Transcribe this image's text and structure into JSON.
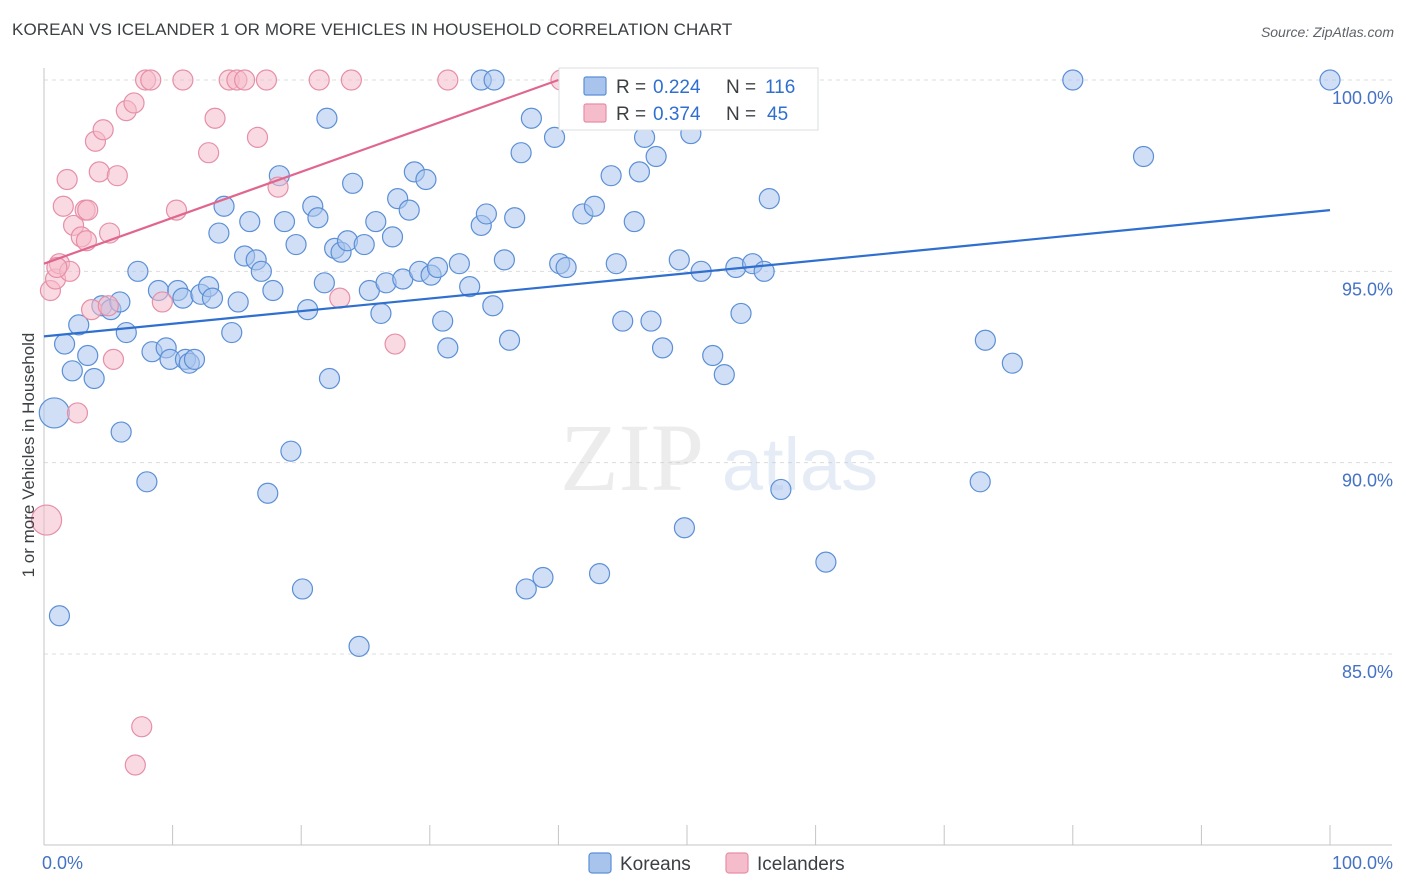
{
  "title": "KOREAN VS ICELANDER 1 OR MORE VEHICLES IN HOUSEHOLD CORRELATION CHART",
  "source": "Source: ZipAtlas.com",
  "watermark": {
    "zip": "ZIP",
    "atlas": "atlas"
  },
  "colors": {
    "koreans_fill": "#a9c4ec",
    "koreans_stroke": "#5b8fd6",
    "koreans_line": "#2f6fcf",
    "icelanders_fill": "#f5bccb",
    "icelanders_stroke": "#e58fa8",
    "icelanders_line": "#e0668e",
    "tick_text": "#4472c4",
    "value_text": "#2f6fcf"
  },
  "legend_box": {
    "rows": [
      {
        "r_label": "R = ",
        "r_value": "0.224",
        "n_label": "N = ",
        "n_value": "116",
        "series": "koreans"
      },
      {
        "r_label": "R = ",
        "r_value": "0.374",
        "n_label": "N = ",
        "n_value": "45",
        "series": "icelanders"
      }
    ]
  },
  "chart_data": {
    "type": "scatter",
    "title": "KOREAN VS ICELANDER 1 OR MORE VEHICLES IN HOUSEHOLD CORRELATION CHART",
    "xlabel": "",
    "ylabel": "1 or more Vehicles in Household",
    "xlim": [
      0,
      100
    ],
    "ylim": [
      80.5,
      100.8
    ],
    "x_ticks": [
      0,
      10,
      20,
      30,
      40,
      50,
      60,
      70,
      80,
      90,
      100
    ],
    "x_tick_labels": [
      {
        "value": 0,
        "label": "0.0%"
      },
      {
        "value": 100,
        "label": "100.0%"
      }
    ],
    "y_tick_labels": [
      {
        "value": 100,
        "label": "100.0%"
      },
      {
        "value": 95,
        "label": "95.0%"
      },
      {
        "value": 90,
        "label": "90.0%"
      },
      {
        "value": 85,
        "label": "85.0%"
      }
    ],
    "grid": true,
    "legend_position": "bottom",
    "series": [
      {
        "name": "Koreans",
        "key": "koreans",
        "trend": {
          "x": [
            0,
            100
          ],
          "y": [
            93.3,
            96.6
          ]
        },
        "points": [
          [
            0.8,
            91.3,
            3
          ],
          [
            1.2,
            86.0,
            2
          ],
          [
            1.6,
            93.1,
            2
          ],
          [
            2.2,
            92.4,
            2
          ],
          [
            2.7,
            93.6,
            2
          ],
          [
            3.4,
            92.8,
            2
          ],
          [
            3.9,
            92.2,
            2
          ],
          [
            4.5,
            94.1,
            2
          ],
          [
            5.2,
            94.0,
            2
          ],
          [
            5.9,
            94.2,
            2
          ],
          [
            6.4,
            93.4,
            2
          ],
          [
            7.3,
            95.0,
            2
          ],
          [
            8.0,
            89.5,
            2
          ],
          [
            8.4,
            92.9,
            2
          ],
          [
            8.9,
            94.5,
            2
          ],
          [
            9.5,
            93.0,
            2
          ],
          [
            9.8,
            92.7,
            2
          ],
          [
            10.4,
            94.5,
            2
          ],
          [
            10.8,
            94.3,
            2
          ],
          [
            11.0,
            92.7,
            2
          ],
          [
            11.3,
            92.6,
            2
          ],
          [
            11.7,
            92.7,
            2
          ],
          [
            12.2,
            94.4,
            2
          ],
          [
            12.8,
            94.6,
            2
          ],
          [
            13.1,
            94.3,
            2
          ],
          [
            13.6,
            96.0,
            2
          ],
          [
            14.0,
            96.7,
            2
          ],
          [
            14.6,
            93.4,
            2
          ],
          [
            15.1,
            94.2,
            2
          ],
          [
            15.6,
            95.4,
            2
          ],
          [
            16.0,
            96.3,
            2
          ],
          [
            16.5,
            95.3,
            2
          ],
          [
            16.9,
            95.0,
            2
          ],
          [
            17.4,
            89.2,
            2
          ],
          [
            17.8,
            94.5,
            2
          ],
          [
            18.3,
            97.5,
            2
          ],
          [
            18.7,
            96.3,
            2
          ],
          [
            19.2,
            90.3,
            2
          ],
          [
            19.6,
            95.7,
            2
          ],
          [
            20.1,
            86.7,
            2
          ],
          [
            20.5,
            94.0,
            2
          ],
          [
            20.9,
            96.7,
            2
          ],
          [
            21.3,
            96.4,
            2
          ],
          [
            21.8,
            94.7,
            2
          ],
          [
            22.2,
            92.2,
            2
          ],
          [
            22.6,
            95.6,
            2
          ],
          [
            23.1,
            95.5,
            2
          ],
          [
            23.6,
            95.8,
            2
          ],
          [
            24.0,
            97.3,
            2
          ],
          [
            24.5,
            85.2,
            2
          ],
          [
            24.9,
            95.7,
            2
          ],
          [
            25.3,
            94.5,
            2
          ],
          [
            25.8,
            96.3,
            2
          ],
          [
            26.2,
            93.9,
            2
          ],
          [
            26.6,
            94.7,
            2
          ],
          [
            27.1,
            95.9,
            2
          ],
          [
            27.5,
            96.9,
            2
          ],
          [
            27.9,
            94.8,
            2
          ],
          [
            28.4,
            96.6,
            2
          ],
          [
            28.8,
            97.6,
            2
          ],
          [
            29.2,
            95.0,
            2
          ],
          [
            29.7,
            97.4,
            2
          ],
          [
            30.1,
            94.9,
            2
          ],
          [
            30.6,
            95.1,
            2
          ],
          [
            31.0,
            93.7,
            2
          ],
          [
            31.4,
            93.0,
            2
          ],
          [
            32.3,
            95.2,
            2
          ],
          [
            33.1,
            94.6,
            2
          ],
          [
            34.0,
            96.2,
            2
          ],
          [
            34.4,
            96.5,
            2
          ],
          [
            34.9,
            94.1,
            2
          ],
          [
            35.8,
            95.3,
            2
          ],
          [
            36.2,
            93.2,
            2
          ],
          [
            36.6,
            96.4,
            2
          ],
          [
            37.1,
            98.1,
            2
          ],
          [
            37.5,
            86.7,
            2
          ],
          [
            37.9,
            99.0,
            2
          ],
          [
            38.8,
            87.0,
            2
          ],
          [
            39.7,
            98.5,
            2
          ],
          [
            40.1,
            95.2,
            2
          ],
          [
            40.6,
            95.1,
            2
          ],
          [
            41.9,
            96.5,
            2
          ],
          [
            42.8,
            96.7,
            2
          ],
          [
            43.2,
            87.1,
            2
          ],
          [
            44.1,
            97.5,
            2
          ],
          [
            44.5,
            95.2,
            2
          ],
          [
            45.0,
            93.7,
            2
          ],
          [
            45.9,
            96.3,
            2
          ],
          [
            46.3,
            97.6,
            2
          ],
          [
            46.7,
            98.5,
            2
          ],
          [
            47.2,
            93.7,
            2
          ],
          [
            47.6,
            98.0,
            2
          ],
          [
            48.1,
            93.0,
            2
          ],
          [
            49.4,
            95.3,
            2
          ],
          [
            49.8,
            88.3,
            2
          ],
          [
            50.3,
            98.6,
            2
          ],
          [
            51.1,
            95.0,
            2
          ],
          [
            52.0,
            92.8,
            2
          ],
          [
            52.9,
            92.3,
            2
          ],
          [
            53.8,
            95.1,
            2
          ],
          [
            54.2,
            93.9,
            2
          ],
          [
            55.1,
            95.2,
            2
          ],
          [
            56.0,
            95.0,
            2
          ],
          [
            56.4,
            96.9,
            2
          ],
          [
            57.3,
            89.3,
            2
          ],
          [
            60.8,
            87.4,
            2
          ],
          [
            72.8,
            89.5,
            2
          ],
          [
            73.2,
            93.2,
            2
          ],
          [
            75.3,
            92.6,
            2
          ],
          [
            80.0,
            100.0,
            2
          ],
          [
            85.5,
            98.0,
            2
          ],
          [
            100.0,
            100.0,
            2
          ],
          [
            34.0,
            100.0,
            2
          ],
          [
            35.0,
            100.0,
            2
          ],
          [
            22.0,
            99.0,
            2
          ],
          [
            6.0,
            90.8,
            2
          ]
        ]
      },
      {
        "name": "Icelanders",
        "key": "icelanders",
        "trend": {
          "x": [
            0,
            40
          ],
          "y": [
            95.2,
            100.0
          ]
        },
        "points": [
          [
            0.2,
            88.5,
            3
          ],
          [
            0.5,
            94.5,
            2
          ],
          [
            0.9,
            94.8,
            2
          ],
          [
            1.2,
            95.2,
            2
          ],
          [
            1.5,
            96.7,
            2
          ],
          [
            1.8,
            97.4,
            2
          ],
          [
            2.0,
            95.0,
            2
          ],
          [
            2.3,
            96.2,
            2
          ],
          [
            2.6,
            91.3,
            2
          ],
          [
            2.9,
            95.9,
            2
          ],
          [
            3.2,
            96.6,
            2
          ],
          [
            3.4,
            96.6,
            2
          ],
          [
            3.7,
            94.0,
            2
          ],
          [
            4.0,
            98.4,
            2
          ],
          [
            4.3,
            97.6,
            2
          ],
          [
            4.6,
            98.7,
            2
          ],
          [
            5.1,
            96.0,
            2
          ],
          [
            5.4,
            92.7,
            2
          ],
          [
            5.7,
            97.5,
            2
          ],
          [
            6.4,
            99.2,
            2
          ],
          [
            7.0,
            99.4,
            2
          ],
          [
            7.6,
            83.1,
            2
          ],
          [
            7.9,
            100.0,
            2
          ],
          [
            8.3,
            100.0,
            2
          ],
          [
            9.2,
            94.2,
            2
          ],
          [
            10.3,
            96.6,
            2
          ],
          [
            10.8,
            100.0,
            2
          ],
          [
            12.8,
            98.1,
            2
          ],
          [
            13.3,
            99.0,
            2
          ],
          [
            14.4,
            100.0,
            2
          ],
          [
            15.0,
            100.0,
            2
          ],
          [
            15.6,
            100.0,
            2
          ],
          [
            16.6,
            98.5,
            2
          ],
          [
            17.3,
            100.0,
            2
          ],
          [
            18.2,
            97.2,
            2
          ],
          [
            21.4,
            100.0,
            2
          ],
          [
            23.0,
            94.3,
            2
          ],
          [
            23.9,
            100.0,
            2
          ],
          [
            27.3,
            93.1,
            2
          ],
          [
            31.4,
            100.0,
            2
          ],
          [
            40.2,
            100.0,
            2
          ],
          [
            7.1,
            82.1,
            2
          ],
          [
            1.0,
            95.1,
            2
          ],
          [
            3.3,
            95.8,
            2
          ],
          [
            5.0,
            94.1,
            2
          ]
        ]
      }
    ]
  }
}
